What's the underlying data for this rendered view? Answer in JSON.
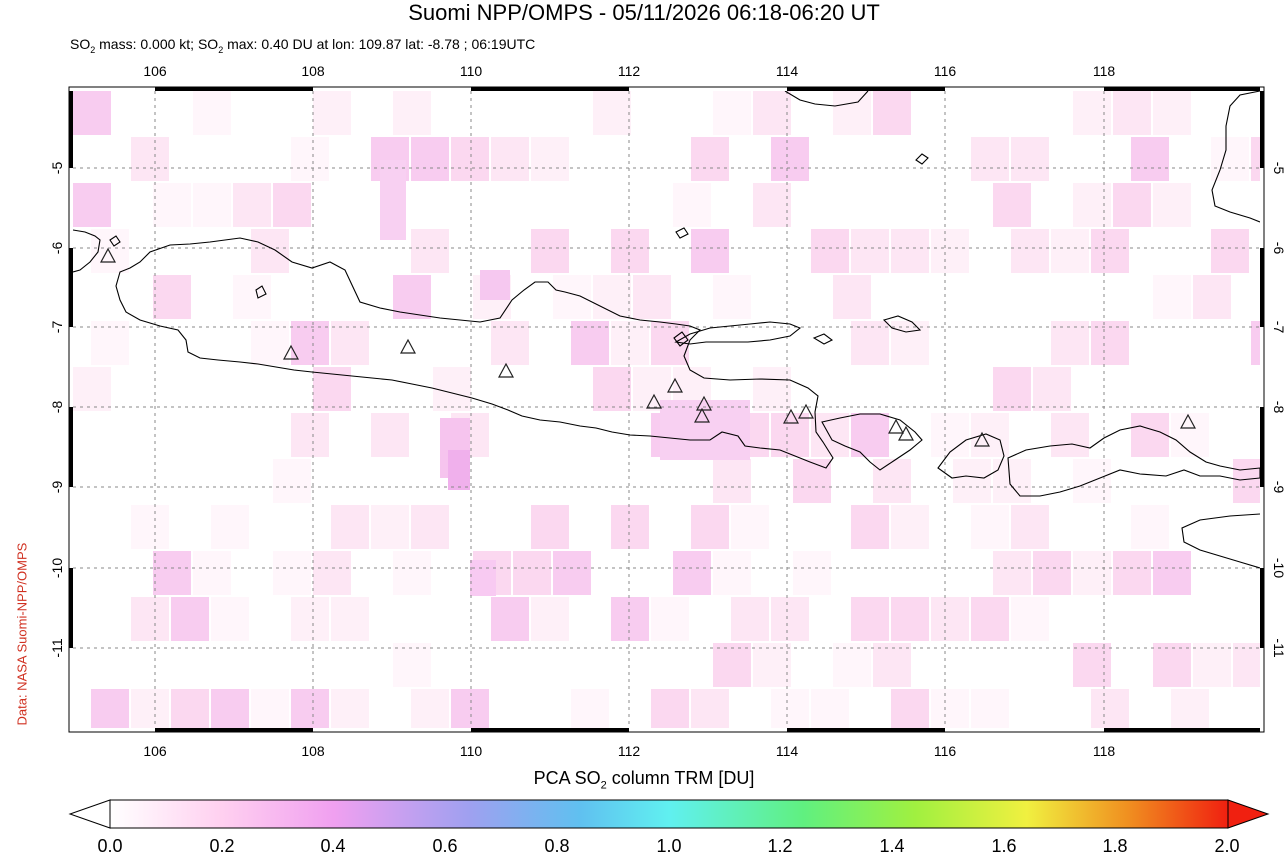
{
  "title": "Suomi NPP/OMPS - 05/11/2026 06:18-06:20 UT",
  "subtitle": {
    "part1": "SO",
    "sub1": "2",
    "part2": " mass: 0.000 kt; SO",
    "sub2": "2",
    "part3": " max: 0.40 DU at lon: 109.87 lat: -8.78 ; 06:19UTC"
  },
  "credit": "Data: NASA Suomi-NPP/OMPS",
  "map": {
    "lon_labels": [
      "106",
      "108",
      "110",
      "112",
      "114",
      "116",
      "118"
    ],
    "lat_labels": [
      "-5",
      "-6",
      "-7",
      "-8",
      "-9",
      "-10",
      "-11"
    ],
    "lon_range": [
      105,
      120
    ],
    "lat_range": [
      -12,
      -4
    ]
  },
  "colorbar": {
    "title_pre": "PCA SO",
    "title_sub": "2",
    "title_post": " column TRM [DU]",
    "ticks": [
      "0.0",
      "0.2",
      "0.4",
      "0.6",
      "0.8",
      "1.0",
      "1.2",
      "1.4",
      "1.6",
      "1.8",
      "2.0"
    ],
    "colors": [
      "#ffffff",
      "#ffd0f0",
      "#f0a0f0",
      "#a0a0f0",
      "#60c0f0",
      "#60f0f0",
      "#60f080",
      "#a0f040",
      "#f0f040",
      "#f09020",
      "#f02010"
    ]
  }
}
